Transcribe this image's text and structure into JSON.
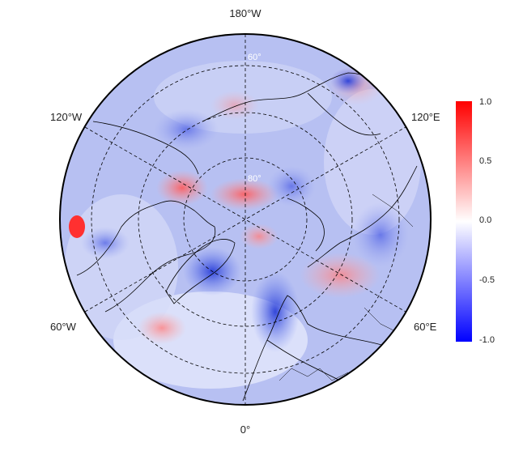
{
  "map": {
    "projection": "north-polar-stereographic",
    "longitude_labels": {
      "top": "180°W",
      "bottom": "0°",
      "upper_left": "120°W",
      "upper_right": "120°E",
      "lower_left": "60°W",
      "lower_right": "60°E"
    },
    "latitude_labels": [
      "60°",
      "80°"
    ],
    "colors": {
      "positive": "#ff0000",
      "neutral": "#ffffff",
      "negative": "#0000ff",
      "coastline": "#000000"
    }
  },
  "colorbar": {
    "range": [
      -1.0,
      1.0
    ],
    "ticks": [
      "1.0",
      "0.5",
      "0.0",
      "-0.5",
      "-1.0"
    ]
  }
}
